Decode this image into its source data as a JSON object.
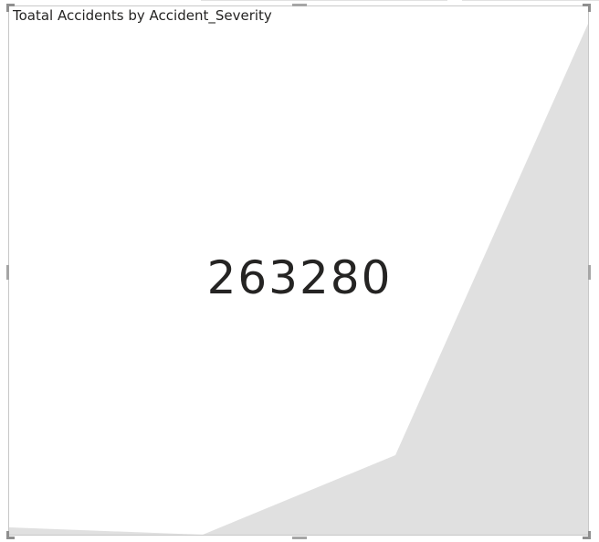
{
  "visual": {
    "title": "Toatal Accidents by Accident_Severity",
    "value": "263280"
  },
  "colors": {
    "area_fill": "#e0e0e0",
    "value_text": "#252423",
    "border": "#c8c8c8",
    "handle": "#a6a6a6"
  }
}
